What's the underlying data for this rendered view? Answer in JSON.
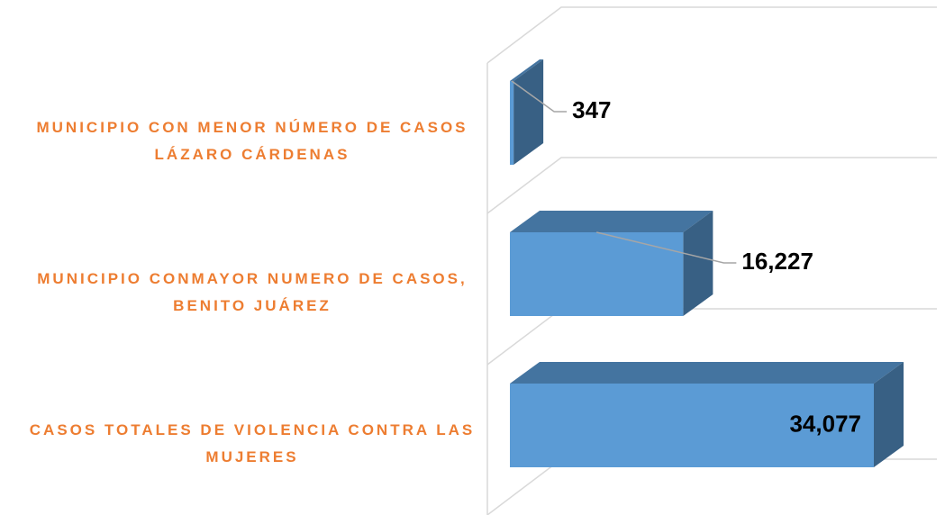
{
  "chart_data": {
    "type": "bar",
    "orientation": "horizontal",
    "three_d": true,
    "categories": [
      "MUNICIPIO CON MENOR NÚMERO DE CASOS LÁZARO CÁRDENAS",
      "MUNICIPIO CONMAYOR NUMERO DE CASOS, BENITO JUÁREZ",
      "CASOS TOTALES DE VIOLENCIA CONTRA LAS MUJERES"
    ],
    "values": [
      347,
      16227,
      34077
    ],
    "value_labels": [
      "347",
      "16,227",
      "34,077"
    ],
    "color": "#5B9BD5"
  }
}
